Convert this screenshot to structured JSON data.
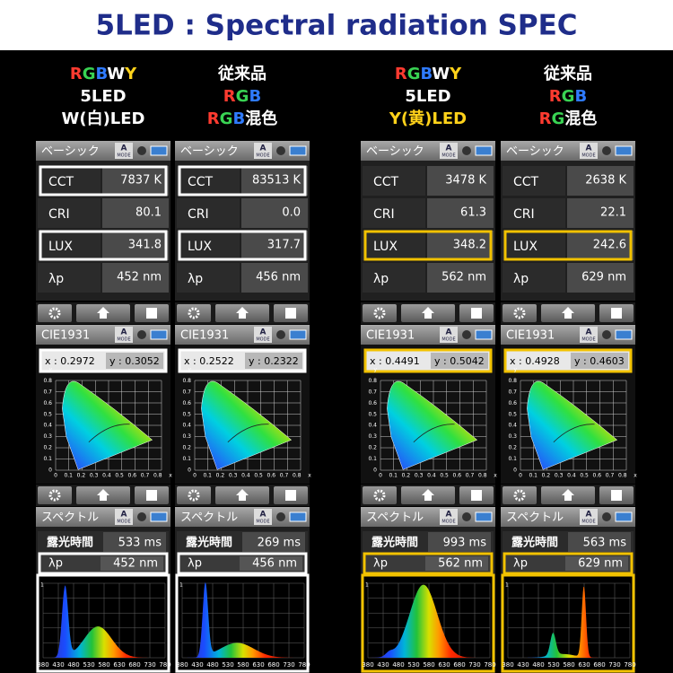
{
  "title": "5LED : Spectral radiation SPEC",
  "panel_titles": {
    "basic": "ベーシック",
    "cie": "CIE1931",
    "spectrum": "スペクトル"
  },
  "mode_icon": {
    "letter": "A",
    "word": "MODE"
  },
  "basic_labels": [
    "CCT",
    "CRI",
    "LUX",
    "λp"
  ],
  "spectrum_labels": {
    "exposure": "露光時間",
    "peak": "λp"
  },
  "cie_yticks": [
    "y",
    "0.8",
    "0.7",
    "0.6",
    "0.5",
    "0.4",
    "0.3",
    "0.2",
    "0.1",
    "0"
  ],
  "cie_xticks": [
    "0",
    "0.1",
    "0.2",
    "0.3",
    "0.4",
    "0.5",
    "0.6",
    "0.7",
    "0.8",
    "x"
  ],
  "spectrum_ticks": [
    "380",
    "430",
    "480",
    "530",
    "580",
    "630",
    "680",
    "730",
    "780"
  ],
  "spectrum_top": "1",
  "columns": [
    {
      "lines": [
        {
          "text": "RGBWY",
          "colors": [
            "#ff3b30",
            "#39d353",
            "#2f7bff",
            "#ffffff",
            "#ffd21a"
          ]
        },
        {
          "text": "5LED"
        },
        {
          "text": "W(白)LED"
        }
      ],
      "highlight": "#ffffff",
      "highlight_rows": [
        0,
        2
      ],
      "basic": [
        "7837 K",
        "80.1",
        "341.8",
        "452 nm"
      ],
      "cie": {
        "x": "x : 0.2972",
        "y": "y : 0.3052"
      },
      "exposure": "533 ms",
      "peak": "452 nm"
    },
    {
      "lines": [
        {
          "text": "従来品"
        },
        {
          "text": "RGB",
          "colors": [
            "#ff3b30",
            "#39d353",
            "#2f7bff"
          ]
        },
        {
          "text": "RGB混色",
          "colors": [
            "#ff3b30",
            "#39d353",
            "#2f7bff",
            "#ffffff",
            "#ffffff"
          ]
        }
      ],
      "highlight": "#ffffff",
      "highlight_rows": [
        0,
        2
      ],
      "basic": [
        "83513 K",
        "0.0",
        "317.7",
        "456 nm"
      ],
      "cie": {
        "x": "x : 0.2522",
        "y": "y : 0.2322"
      },
      "exposure": "269 ms",
      "peak": "456 nm"
    },
    {
      "lines": [
        {
          "text": "RGBWY",
          "colors": [
            "#ff3b30",
            "#39d353",
            "#2f7bff",
            "#ffffff",
            "#ffd21a"
          ]
        },
        {
          "text": "5LED"
        },
        {
          "text": "Y(黄)LED",
          "colors": [
            "#ffd21a",
            "#ffd21a",
            "#ffd21a",
            "#ffd21a",
            "#ffd21a",
            "#ffd21a",
            "#ffd21a"
          ]
        }
      ],
      "highlight": "#f2c200",
      "highlight_rows": [
        2
      ],
      "basic": [
        "3478 K",
        "61.3",
        "348.2",
        "562 nm"
      ],
      "cie": {
        "x": "x : 0.4491",
        "y": "y : 0.5042"
      },
      "exposure": "993 ms",
      "peak": "562 nm"
    },
    {
      "lines": [
        {
          "text": "従来品"
        },
        {
          "text": "RGB",
          "colors": [
            "#ff3b30",
            "#39d353",
            "#2f7bff"
          ]
        },
        {
          "text": "RG混色",
          "colors": [
            "#ff3b30",
            "#39d353",
            "#ffffff",
            "#ffffff"
          ]
        }
      ],
      "highlight": "#f2c200",
      "highlight_rows": [
        2
      ],
      "basic": [
        "2638 K",
        "22.1",
        "242.6",
        "629 nm"
      ],
      "cie": {
        "x": "x : 0.4928",
        "y": "y : 0.4603"
      },
      "exposure": "563 ms",
      "peak": "629 nm"
    }
  ]
}
